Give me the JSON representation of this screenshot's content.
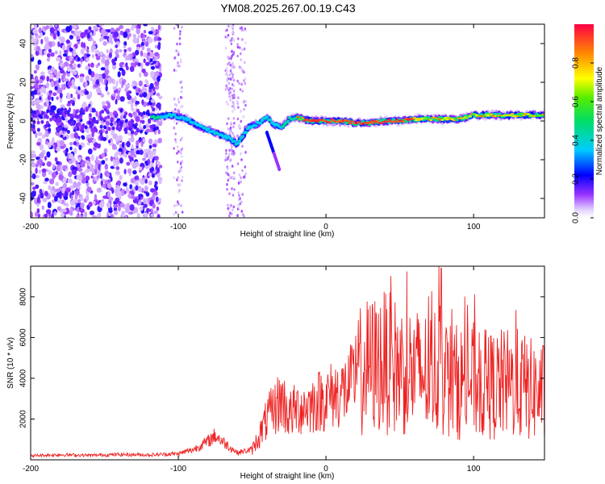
{
  "title": "YM08.2025.267.00.19.C43",
  "chart_data": [
    {
      "type": "heatmap",
      "xlabel": "Height of straight line (km)",
      "ylabel": "Frequency (Hz)",
      "xlim": [
        -200,
        148
      ],
      "ylim": [
        -50,
        50
      ],
      "xticks": [
        -200,
        -100,
        0,
        100
      ],
      "yticks": [
        -40,
        -20,
        0,
        20,
        40
      ],
      "colorbar": {
        "label": "Normalized spectral amplitude",
        "range": [
          0,
          1
        ],
        "ticks": [
          "0.0",
          "0.2",
          "0.4",
          "0.6",
          "0.8"
        ]
      },
      "ridge": {
        "name": "dominant frequency track",
        "x": [
          -115,
          -105,
          -95,
          -85,
          -75,
          -65,
          -60,
          -52,
          -45,
          -40,
          -35,
          -30,
          -25,
          -20,
          -10,
          0,
          10,
          20,
          30,
          40,
          50,
          60,
          70,
          80,
          90,
          100,
          110,
          120,
          130,
          140,
          148
        ],
        "y": [
          2,
          3,
          1,
          -3,
          -6,
          -9,
          -12,
          -3,
          -1,
          2,
          -2,
          -3,
          1,
          2,
          0,
          0,
          0,
          -1,
          -1,
          0,
          0,
          1,
          1,
          1,
          1,
          3,
          3,
          3,
          3,
          3,
          3
        ]
      }
    },
    {
      "type": "line",
      "xlabel": "Height of straight line (km)",
      "ylabel": "SNR (10 * v/v)",
      "xlim": [
        -200,
        148
      ],
      "ylim": [
        0,
        9500
      ],
      "xticks": [
        -200,
        -100,
        0,
        100
      ],
      "yticks": [
        2000,
        4000,
        6000,
        8000
      ],
      "series": [
        {
          "name": "SNR",
          "color": "#ee2222",
          "x": [
            -200,
            -180,
            -160,
            -140,
            -120,
            -100,
            -90,
            -80,
            -75,
            -70,
            -60,
            -50,
            -45,
            -40,
            -35,
            -30,
            -25,
            -20,
            -15,
            -10,
            -5,
            0,
            5,
            10,
            15,
            20,
            25,
            30,
            40,
            50,
            60,
            70,
            78,
            80,
            90,
            100,
            110,
            120,
            130,
            140,
            148
          ],
          "values": [
            200,
            250,
            220,
            260,
            240,
            300,
            500,
            900,
            1200,
            900,
            350,
            500,
            1200,
            2000,
            2500,
            3000,
            2200,
            2500,
            2600,
            2700,
            2900,
            3000,
            3200,
            3300,
            3500,
            4000,
            4500,
            4600,
            4800,
            4500,
            4300,
            4200,
            4600,
            4000,
            3800,
            3900,
            3600,
            3700,
            3700,
            3400,
            3300
          ]
        }
      ]
    }
  ]
}
